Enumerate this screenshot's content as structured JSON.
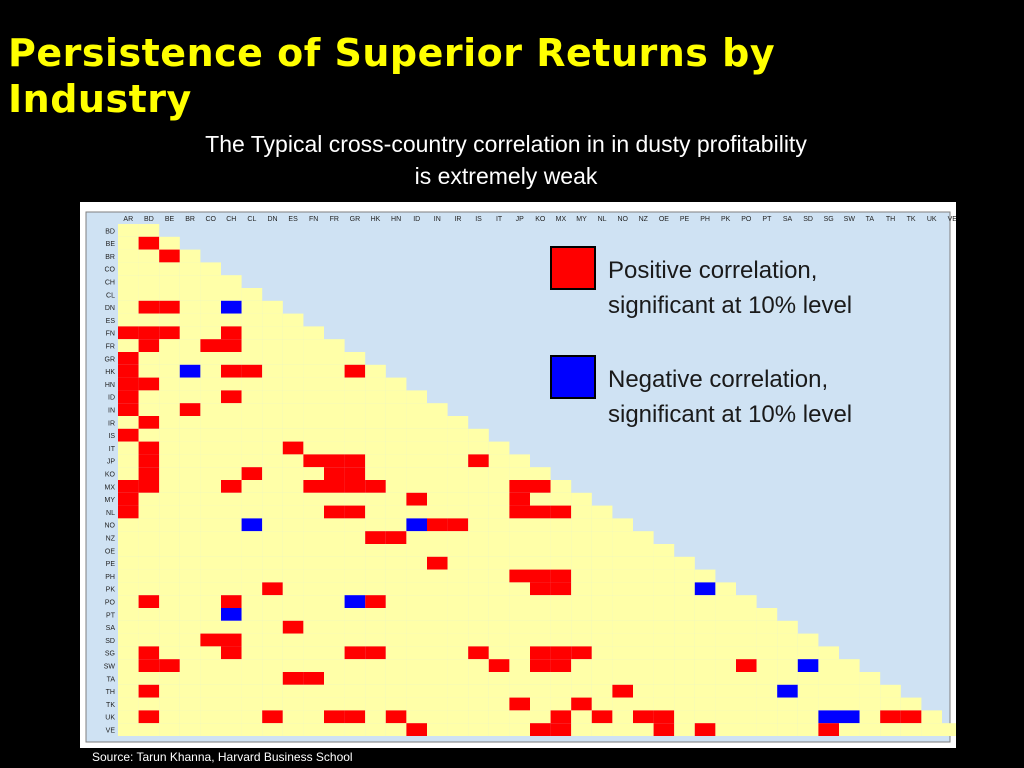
{
  "slide": {
    "title": "Persistence of Superior Returns by Industry",
    "subtitle": "The Typical cross-country correlation in in dusty profitability is extremely weak",
    "source": "Source: Tarun Khanna, Harvard Business School"
  },
  "colors": {
    "title": "#ffff00",
    "background": "#000000",
    "panel": "#cfe2f3",
    "cell": "#ffffa8",
    "positive": "#ff0000",
    "negative": "#0000ff"
  },
  "chart_data": {
    "type": "heatmap",
    "shape": "lower-triangular",
    "columns": [
      "AR",
      "BD",
      "BE",
      "BR",
      "CO",
      "CH",
      "CL",
      "DN",
      "ES",
      "FN",
      "FR",
      "GR",
      "HK",
      "HN",
      "ID",
      "IN",
      "IR",
      "IS",
      "IT",
      "JP",
      "KO",
      "MX",
      "MY",
      "NL",
      "NO",
      "NZ",
      "OE",
      "PE",
      "PH",
      "PK",
      "PO",
      "PT",
      "SA",
      "SD",
      "SG",
      "SW",
      "TA",
      "TH",
      "TK",
      "UK",
      "VE"
    ],
    "rows": [
      "BD",
      "BE",
      "BR",
      "CO",
      "CH",
      "CL",
      "DN",
      "ES",
      "FN",
      "FR",
      "GR",
      "HK",
      "HN",
      "ID",
      "IN",
      "IR",
      "IS",
      "IT",
      "JP",
      "KO",
      "MX",
      "MY",
      "NL",
      "NO",
      "NZ",
      "OE",
      "PE",
      "PH",
      "PK",
      "PO",
      "PT",
      "SA",
      "SD",
      "SG",
      "SW",
      "TA",
      "TH",
      "TK",
      "UK",
      "VE"
    ],
    "positive_cells": [
      [
        1,
        1
      ],
      [
        2,
        2
      ],
      [
        6,
        1
      ],
      [
        6,
        2
      ],
      [
        8,
        0
      ],
      [
        8,
        1
      ],
      [
        8,
        2
      ],
      [
        8,
        5
      ],
      [
        9,
        1
      ],
      [
        9,
        4
      ],
      [
        9,
        5
      ],
      [
        10,
        0
      ],
      [
        11,
        0
      ],
      [
        11,
        5
      ],
      [
        11,
        6
      ],
      [
        11,
        11
      ],
      [
        12,
        0
      ],
      [
        12,
        1
      ],
      [
        13,
        0
      ],
      [
        13,
        5
      ],
      [
        14,
        0
      ],
      [
        14,
        3
      ],
      [
        15,
        1
      ],
      [
        16,
        0
      ],
      [
        17,
        1
      ],
      [
        17,
        8
      ],
      [
        18,
        1
      ],
      [
        18,
        9
      ],
      [
        18,
        10
      ],
      [
        18,
        11
      ],
      [
        18,
        17
      ],
      [
        19,
        1
      ],
      [
        19,
        6
      ],
      [
        19,
        10
      ],
      [
        19,
        11
      ],
      [
        20,
        0
      ],
      [
        20,
        1
      ],
      [
        20,
        5
      ],
      [
        20,
        9
      ],
      [
        20,
        10
      ],
      [
        20,
        11
      ],
      [
        20,
        12
      ],
      [
        20,
        19
      ],
      [
        20,
        20
      ],
      [
        21,
        0
      ],
      [
        21,
        14
      ],
      [
        21,
        19
      ],
      [
        22,
        0
      ],
      [
        22,
        10
      ],
      [
        22,
        11
      ],
      [
        22,
        19
      ],
      [
        22,
        20
      ],
      [
        22,
        21
      ],
      [
        23,
        15
      ],
      [
        23,
        16
      ],
      [
        24,
        12
      ],
      [
        24,
        13
      ],
      [
        26,
        15
      ],
      [
        27,
        19
      ],
      [
        27,
        20
      ],
      [
        27,
        21
      ],
      [
        28,
        7
      ],
      [
        28,
        20
      ],
      [
        28,
        21
      ],
      [
        29,
        1
      ],
      [
        29,
        5
      ],
      [
        29,
        12
      ],
      [
        31,
        8
      ],
      [
        32,
        4
      ],
      [
        32,
        5
      ],
      [
        33,
        1
      ],
      [
        33,
        5
      ],
      [
        33,
        11
      ],
      [
        33,
        12
      ],
      [
        33,
        17
      ],
      [
        33,
        20
      ],
      [
        33,
        21
      ],
      [
        33,
        22
      ],
      [
        34,
        1
      ],
      [
        34,
        2
      ],
      [
        34,
        18
      ],
      [
        34,
        20
      ],
      [
        34,
        21
      ],
      [
        34,
        30
      ],
      [
        35,
        8
      ],
      [
        35,
        9
      ],
      [
        36,
        1
      ],
      [
        36,
        24
      ],
      [
        37,
        19
      ],
      [
        37,
        22
      ],
      [
        38,
        1
      ],
      [
        38,
        7
      ],
      [
        38,
        10
      ],
      [
        38,
        11
      ],
      [
        38,
        13
      ],
      [
        38,
        21
      ],
      [
        38,
        23
      ],
      [
        38,
        25
      ],
      [
        38,
        26
      ],
      [
        38,
        37
      ],
      [
        38,
        38
      ],
      [
        39,
        14
      ],
      [
        39,
        20
      ],
      [
        39,
        21
      ],
      [
        39,
        26
      ],
      [
        39,
        28
      ],
      [
        39,
        34
      ]
    ],
    "negative_cells": [
      [
        6,
        5
      ],
      [
        11,
        3
      ],
      [
        23,
        6
      ],
      [
        23,
        14
      ],
      [
        28,
        28
      ],
      [
        29,
        11
      ],
      [
        30,
        5
      ],
      [
        34,
        33
      ],
      [
        36,
        32
      ],
      [
        38,
        34
      ],
      [
        38,
        35
      ]
    ]
  },
  "legend": {
    "positive_line1": "Positive correlation,",
    "positive_line2": "significant at 10% level",
    "negative_line1": "Negative correlation,",
    "negative_line2": "significant at 10% level"
  }
}
